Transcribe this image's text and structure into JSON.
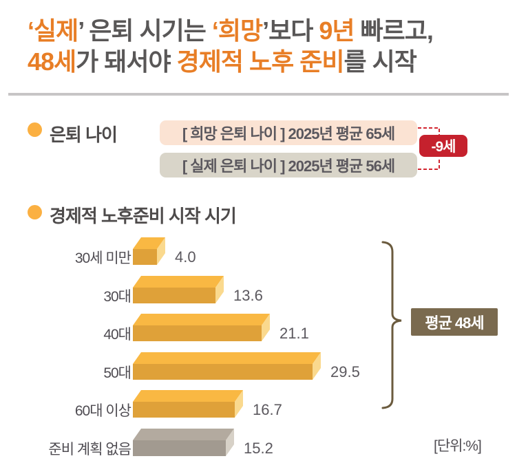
{
  "colors": {
    "accent_orange": "#E87E26",
    "title_gray": "#595757",
    "bar_front": "#DFA139",
    "bar_top": "#F9B843",
    "bar_side": "#FAD98E",
    "gray_front": "#A29A90",
    "gray_top": "#B3AA9F",
    "gray_side": "#D7D1C7",
    "badge_red": "#C5212D",
    "hope_box_bg": "#FBE3D3",
    "actual_box_bg": "#D9D5C9",
    "bracket_brown": "#6B5B3E",
    "avg_box_bg": "#7A6A4F",
    "bullet_gold": "#FBB042"
  },
  "title": {
    "line1": [
      {
        "text": "‘실제",
        "color": "orange"
      },
      {
        "text": "’ 은퇴 시기는 ",
        "color": "gray"
      },
      {
        "text": "‘희망",
        "color": "orange"
      },
      {
        "text": "’보다 ",
        "color": "gray"
      },
      {
        "text": "9년",
        "color": "orange"
      },
      {
        "text": " 빠르고,",
        "color": "gray"
      }
    ],
    "line2": [
      {
        "text": "48세",
        "color": "orange"
      },
      {
        "text": "가 돼서야 ",
        "color": "gray"
      },
      {
        "text": "경제적 노후 준비",
        "color": "orange"
      },
      {
        "text": "를 시작",
        "color": "gray"
      }
    ]
  },
  "retirement_age": {
    "section_label": "은퇴 나이",
    "hope_box": "[ 희망 은퇴 나이 ] 2025년 평균 65세",
    "actual_box": "[ 실제 은퇴 나이 ] 2025년 평균 56세",
    "diff_badge": "-9세"
  },
  "chart_data": {
    "type": "bar",
    "orientation": "horizontal",
    "title": "경제적 노후준비 시작 시기",
    "unit_label": "[단위:%]",
    "categories": [
      "30세 미만",
      "30대",
      "40대",
      "50대",
      "60대 이상",
      "준비 계획 없음"
    ],
    "values": [
      4.0,
      13.6,
      21.1,
      29.5,
      16.7,
      15.2
    ],
    "styles": [
      "gold",
      "gold",
      "gold",
      "gold",
      "gold",
      "gray"
    ],
    "value_format": "1-decimal",
    "xlim": [
      0,
      33
    ],
    "grid": false,
    "legend": false,
    "annotation": "평균 48세",
    "annotation_note": "bracket spans rows 1-5 (age-group bars only)"
  }
}
